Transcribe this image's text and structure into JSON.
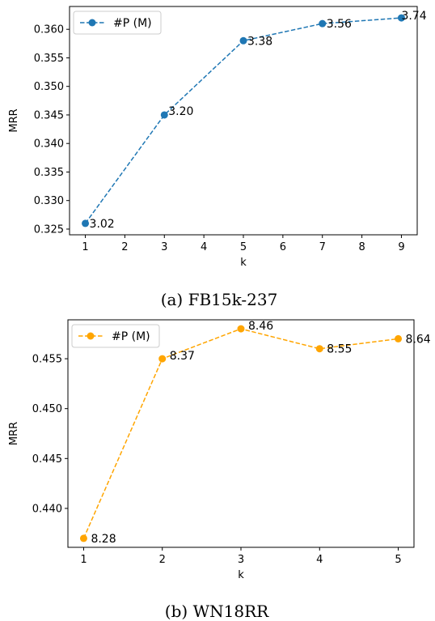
{
  "chart_data": [
    {
      "type": "line",
      "caption": "(a) FB15k-237",
      "xlabel": "k",
      "ylabel": "MRR",
      "xlim": [
        0.6,
        9.4
      ],
      "ylim": [
        0.324,
        0.364
      ],
      "xticks": [
        1,
        2,
        3,
        4,
        5,
        6,
        7,
        8,
        9
      ],
      "yticks": [
        0.325,
        0.33,
        0.335,
        0.34,
        0.345,
        0.35,
        0.355,
        0.36
      ],
      "ytick_labels": [
        "0.325",
        "0.330",
        "0.335",
        "0.340",
        "0.345",
        "0.350",
        "0.355",
        "0.360"
      ],
      "series": [
        {
          "name": "#P (M)",
          "color": "#1f77b4",
          "x": [
            1,
            3,
            5,
            7,
            9
          ],
          "y": [
            0.326,
            0.345,
            0.358,
            0.361,
            0.362
          ],
          "labels": [
            "3.02",
            "3.20",
            "3.38",
            "3.56",
            "3.74"
          ]
        }
      ],
      "legend": "top-left",
      "grid": false
    },
    {
      "type": "line",
      "caption": "(b) WN18RR",
      "xlabel": "k",
      "ylabel": "MRR",
      "xlim": [
        0.8,
        5.2
      ],
      "ylim": [
        0.4361,
        0.4589
      ],
      "xticks": [
        1,
        2,
        3,
        4,
        5
      ],
      "yticks": [
        0.44,
        0.445,
        0.45,
        0.455
      ],
      "ytick_labels": [
        "0.440",
        "0.445",
        "0.450",
        "0.455"
      ],
      "series": [
        {
          "name": "#P (M)",
          "color": "#ffa500",
          "x": [
            1,
            2,
            3,
            4,
            5
          ],
          "y": [
            0.437,
            0.455,
            0.458,
            0.456,
            0.457
          ],
          "labels": [
            "8.28",
            "8.37",
            "8.46",
            "8.55",
            "8.64"
          ]
        }
      ],
      "legend": "top-left",
      "grid": false
    }
  ]
}
